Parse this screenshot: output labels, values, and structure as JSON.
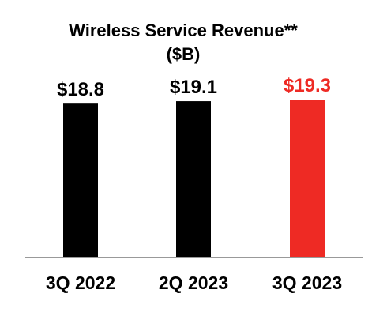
{
  "chart_data": {
    "type": "bar",
    "title": "Wireless Service Revenue**",
    "subtitle": "($B)",
    "categories": [
      "3Q 2022",
      "2Q 2023",
      "3Q 2023"
    ],
    "values": [
      18.8,
      19.1,
      19.3
    ],
    "value_labels": [
      "$18.8",
      "$19.1",
      "$19.3"
    ],
    "bar_colors": [
      "#000000",
      "#000000",
      "#ee2a24"
    ],
    "label_colors": [
      "#000000",
      "#000000",
      "#ee2a24"
    ],
    "axis_color": "#999999",
    "ylim": [
      0,
      19.3
    ],
    "grid": false,
    "xlabel": "",
    "ylabel": ""
  }
}
